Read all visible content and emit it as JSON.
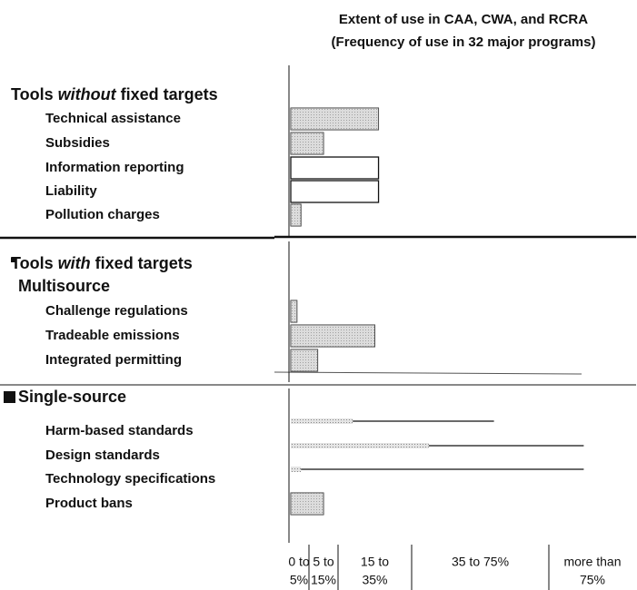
{
  "chart_data": {
    "type": "bar",
    "title": [
      "Extent of use in CAA, CWA, and RCRA",
      "(Frequency of use in 32 major programs)"
    ],
    "color": "#cfcfcf",
    "xlim": [
      0,
      100
    ],
    "xticks": [
      0,
      5,
      15,
      35,
      75,
      100
    ],
    "x_bin_labels": [
      [
        "0 to",
        "5%"
      ],
      [
        "5 to",
        "15%"
      ],
      [
        "15 to",
        "35%"
      ],
      [
        "35 to 75%"
      ],
      [
        "more than",
        "75%"
      ]
    ],
    "sections": [
      {
        "heading": [
          "Tools ",
          "without",
          " fixed targets"
        ],
        "categories": [
          "Technical assistance",
          "Subsidies",
          "Information reporting",
          "Liability",
          "Pollution charges"
        ],
        "values": [
          26,
          10,
          26,
          26,
          3
        ],
        "upper_values": [
          null,
          null,
          null,
          null,
          null
        ],
        "outlined": [
          false,
          false,
          true,
          true,
          false
        ]
      },
      {
        "heading": [
          "Tools ",
          "with",
          " fixed targets"
        ],
        "subheading": "Multisource",
        "categories": [
          "Challenge regulations",
          "Tradeable emissions",
          "Integrated permitting"
        ],
        "values": [
          2,
          25,
          8
        ],
        "upper_values": [
          null,
          null,
          null
        ],
        "outlined": [
          false,
          false,
          false
        ]
      },
      {
        "subheading": "Single-source",
        "categories": [
          "Harm-based standards",
          "Design standards",
          "Technology specifications",
          "Product bans"
        ],
        "values": [
          19,
          40,
          3,
          10
        ],
        "upper_values": [
          59,
          85,
          85,
          null
        ],
        "outlined": [
          false,
          false,
          false,
          false
        ]
      }
    ]
  }
}
